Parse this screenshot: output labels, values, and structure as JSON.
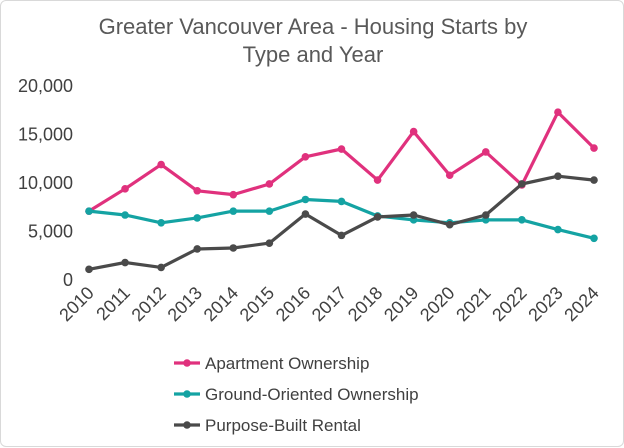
{
  "chart_data": {
    "type": "line",
    "title": "Greater Vancouver Area - Housing Starts by Type and Year",
    "title_lines": [
      "Greater Vancouver Area - Housing Starts by",
      "Type and Year"
    ],
    "x": [
      "2010",
      "2011",
      "2012",
      "2013",
      "2014",
      "2015",
      "2016",
      "2017",
      "2018",
      "2019",
      "2020",
      "2021",
      "2022",
      "2023",
      "2024"
    ],
    "ylim": [
      0,
      20000
    ],
    "yticks": [
      0,
      5000,
      10000,
      15000,
      20000
    ],
    "ytick_labels": [
      "0",
      "5,000",
      "10,000",
      "15,000",
      "20,000"
    ],
    "xlabel": "",
    "ylabel": "",
    "grid": false,
    "legend_position": "bottom",
    "series": [
      {
        "name": "Apartment Ownership",
        "color": "#e0317d",
        "values": [
          7100,
          9400,
          11900,
          9200,
          8800,
          9900,
          12700,
          13500,
          10300,
          15300,
          10800,
          13200,
          9800,
          17300,
          13600
        ]
      },
      {
        "name": "Ground-Oriented Ownership",
        "color": "#14a3a3",
        "values": [
          7100,
          6700,
          5900,
          6400,
          7100,
          7100,
          8300,
          8100,
          6600,
          6200,
          5900,
          6200,
          6200,
          5200,
          4300
        ]
      },
      {
        "name": "Purpose-Built Rental",
        "color": "#4a4a4a",
        "values": [
          1100,
          1800,
          1300,
          3200,
          3300,
          3800,
          6800,
          4600,
          6500,
          6700,
          5700,
          6700,
          9900,
          10700,
          10300
        ]
      }
    ]
  }
}
